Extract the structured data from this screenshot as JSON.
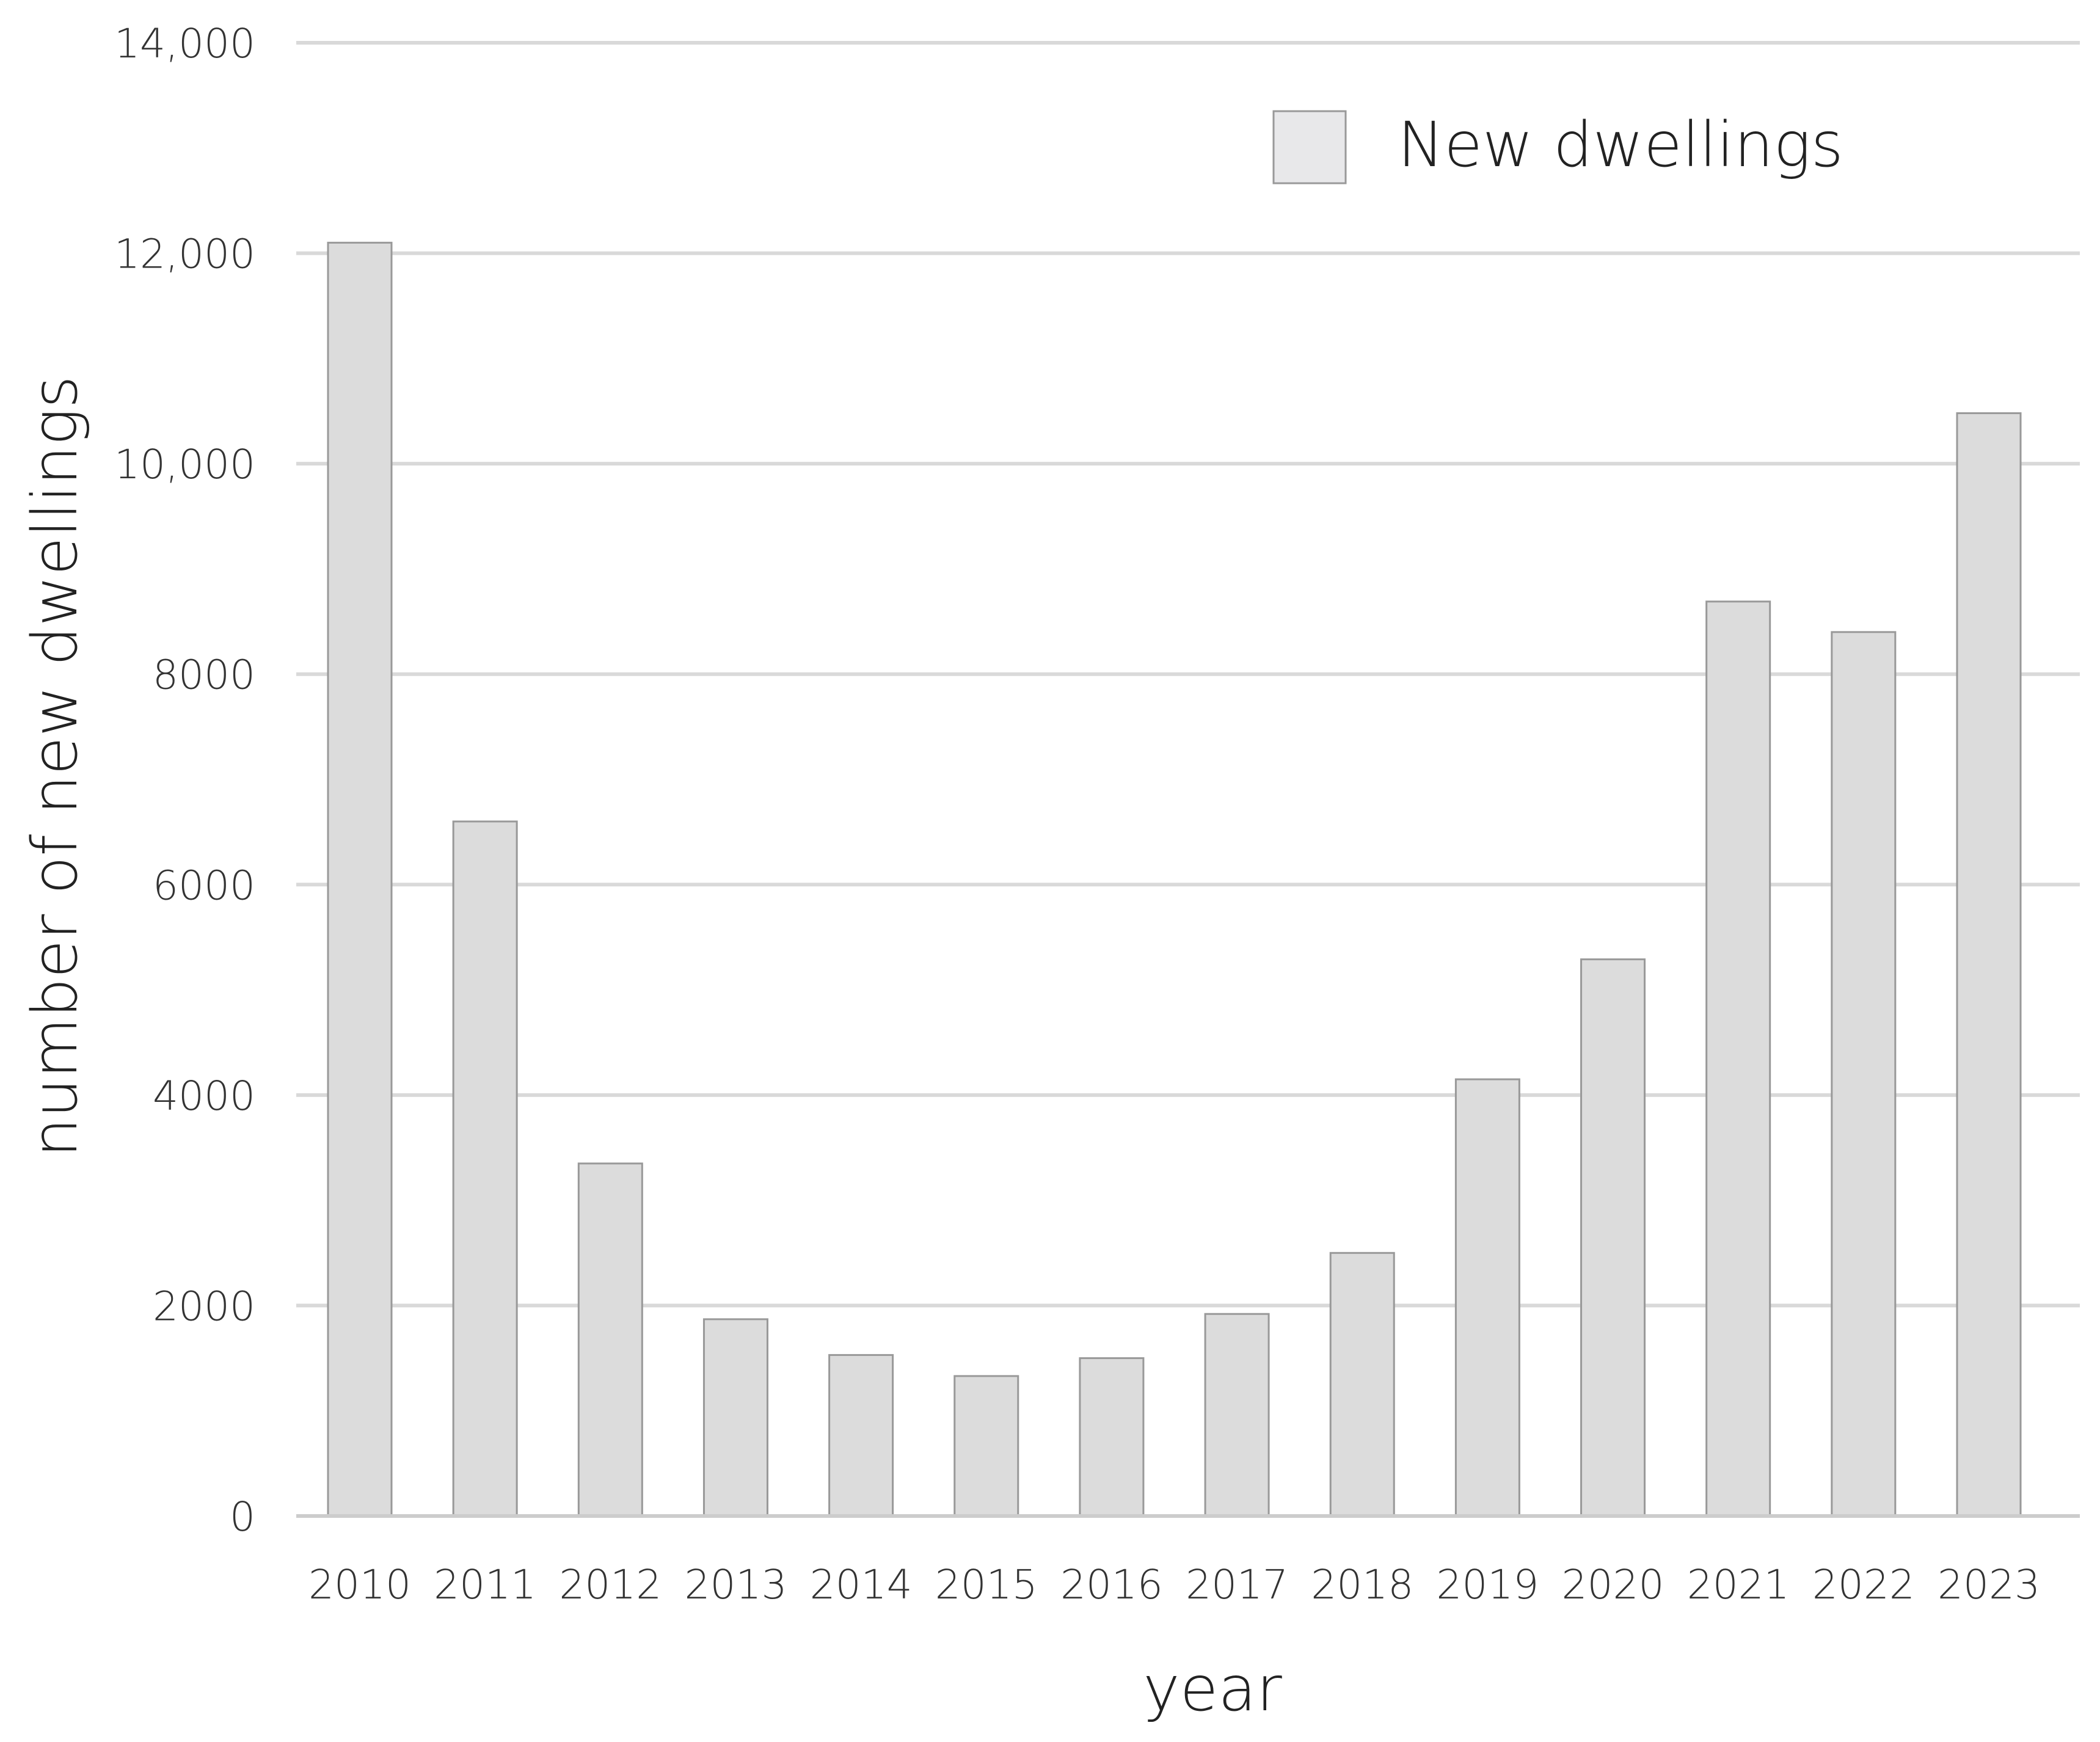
{
  "chart_data": {
    "type": "bar",
    "title": "",
    "xlabel": "year",
    "ylabel": "number of new dwellings",
    "ylim": [
      0,
      14000
    ],
    "yticks": [
      0,
      2000,
      4000,
      6000,
      8000,
      10000,
      12000,
      14000
    ],
    "ytick_labels": [
      "0",
      "2000",
      "4000",
      "6000",
      "8000",
      "10,000",
      "12,000",
      "14,000"
    ],
    "categories": [
      "2010",
      "2011",
      "2012",
      "2013",
      "2014",
      "2015",
      "2016",
      "2017",
      "2018",
      "2019",
      "2020",
      "2021",
      "2022",
      "2023"
    ],
    "series": [
      {
        "name": "New dwellings",
        "values": [
          12100,
          6600,
          3350,
          1870,
          1530,
          1330,
          1500,
          1920,
          2500,
          4150,
          5290,
          8690,
          8400,
          10480
        ]
      }
    ],
    "grid": true,
    "legend_position": "top-right",
    "colors": {
      "bar_fill": "#dcdcdc",
      "bar_stroke": "#999999",
      "legend_fill": "#e8e8ea",
      "gridline": "#d9d9d9",
      "baseline": "#cccccc",
      "text": "#333333"
    }
  }
}
